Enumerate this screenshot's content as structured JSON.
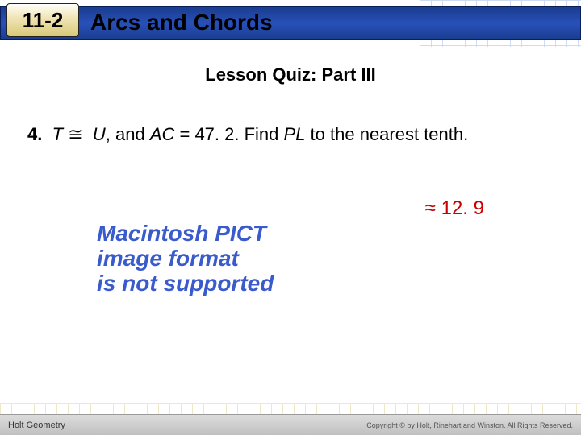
{
  "header": {
    "section_number": "11-2",
    "title": "Arcs and Chords",
    "bar_gradient": [
      "#1a3d8f",
      "#2850b8",
      "#1a3d8f"
    ],
    "badge_gradient": [
      "#ffffff",
      "#f2e6b8",
      "#d9c878"
    ]
  },
  "subtitle": "Lesson Quiz: Part III",
  "question": {
    "number": "4.",
    "arc_symbol": "⮤",
    "var1": "T",
    "congruent": "≅",
    "var2": "U",
    "text_mid": ", and ",
    "var3": "AC",
    "equals_part": " = 47. 2. Find ",
    "var4": "PL",
    "text_end": " to the nearest tenth."
  },
  "answer": {
    "symbol": "≈",
    "value": "12. 9",
    "color": "#cc0000"
  },
  "pict_error": {
    "line1": "Macintosh PICT",
    "line2": "image format",
    "line3": "is not supported",
    "color": "#3a5bcc"
  },
  "footer": {
    "left": "Holt Geometry",
    "right": "Copyright © by Holt, Rinehart and Winston. All Rights Reserved."
  }
}
